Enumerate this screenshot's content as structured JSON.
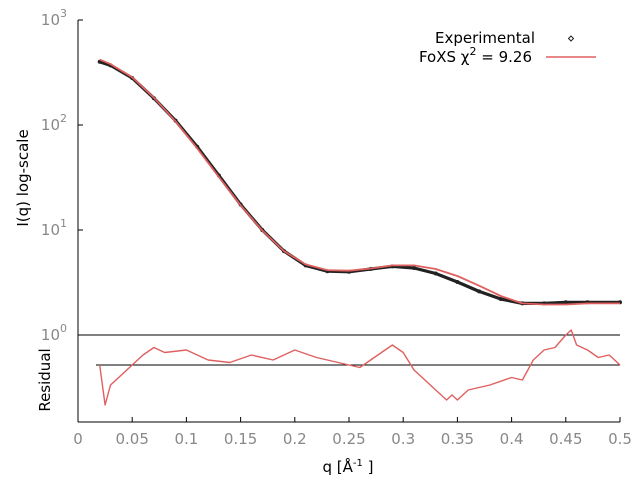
{
  "chart_data": {
    "type": "line",
    "xlabel": "q [Å⁻¹]",
    "xlabel_main": "q [Å",
    "xlabel_sup": "-1",
    "xlabel_end": " ]",
    "ylabel": "I(q) log-scale",
    "residual_ylabel": "Residual",
    "xlim": [
      0,
      0.5
    ],
    "ylim": [
      1,
      1000
    ],
    "yscale": "log",
    "grid": false,
    "legend_placement": "top-right",
    "x_ticks": [
      "0",
      "0.05",
      "0.1",
      "0.15",
      "0.2",
      "0.25",
      "0.3",
      "0.35",
      "0.4",
      "0.45",
      "0.5"
    ],
    "y_ticks": [
      {
        "base": "10",
        "exp": "0",
        "value": 1
      },
      {
        "base": "10",
        "exp": "1",
        "value": 10
      },
      {
        "base": "10",
        "exp": "2",
        "value": 100
      },
      {
        "base": "10",
        "exp": "3",
        "value": 1000
      }
    ],
    "colors": {
      "experimental": "#222222",
      "fit": "#e06060",
      "axis": "#000000",
      "tick_label": "#888888"
    },
    "series": [
      {
        "name": "Experimental",
        "marker": "point",
        "x": [
          0.02,
          0.03,
          0.05,
          0.07,
          0.09,
          0.11,
          0.13,
          0.15,
          0.17,
          0.19,
          0.21,
          0.23,
          0.25,
          0.27,
          0.29,
          0.31,
          0.33,
          0.35,
          0.37,
          0.39,
          0.41,
          0.43,
          0.45,
          0.47,
          0.5
        ],
        "y": [
          400,
          370,
          280,
          180,
          110,
          62,
          33,
          17.5,
          10,
          6.3,
          4.6,
          4.05,
          4.0,
          4.25,
          4.5,
          4.35,
          3.85,
          3.2,
          2.6,
          2.2,
          2.0,
          2.0,
          2.05,
          2.05,
          2.05
        ]
      },
      {
        "name": "FoXS χ² = 9.26",
        "legend_main": "FoXS χ",
        "legend_sup": "2",
        "legend_end": " = 9.26",
        "x": [
          0.02,
          0.03,
          0.05,
          0.07,
          0.09,
          0.11,
          0.13,
          0.15,
          0.17,
          0.19,
          0.21,
          0.23,
          0.25,
          0.27,
          0.29,
          0.31,
          0.33,
          0.35,
          0.37,
          0.39,
          0.41,
          0.43,
          0.45,
          0.47,
          0.5
        ],
        "y": [
          420,
          380,
          285,
          182,
          108,
          60,
          32,
          17.2,
          9.9,
          6.3,
          4.7,
          4.15,
          4.1,
          4.3,
          4.6,
          4.6,
          4.25,
          3.65,
          2.95,
          2.35,
          2.0,
          1.95,
          1.95,
          2.0,
          2.0
        ]
      }
    ],
    "residual": {
      "zero_line": true,
      "x": [
        0.02,
        0.025,
        0.03,
        0.04,
        0.05,
        0.06,
        0.07,
        0.08,
        0.1,
        0.12,
        0.14,
        0.16,
        0.18,
        0.2,
        0.22,
        0.24,
        0.26,
        0.28,
        0.29,
        0.3,
        0.31,
        0.32,
        0.33,
        0.34,
        0.345,
        0.35,
        0.36,
        0.38,
        0.4,
        0.41,
        0.42,
        0.43,
        0.44,
        0.45,
        0.455,
        0.46,
        0.47,
        0.48,
        0.49,
        0.5
      ],
      "y": [
        0.0,
        -0.8,
        -0.4,
        -0.2,
        0.0,
        0.2,
        0.35,
        0.25,
        0.3,
        0.1,
        0.05,
        0.2,
        0.1,
        0.3,
        0.15,
        0.05,
        -0.05,
        0.25,
        0.4,
        0.25,
        -0.1,
        -0.3,
        -0.5,
        -0.7,
        -0.6,
        -0.7,
        -0.5,
        -0.4,
        -0.25,
        -0.3,
        0.1,
        0.3,
        0.35,
        0.6,
        0.7,
        0.4,
        0.3,
        0.15,
        0.2,
        0.0
      ]
    }
  }
}
